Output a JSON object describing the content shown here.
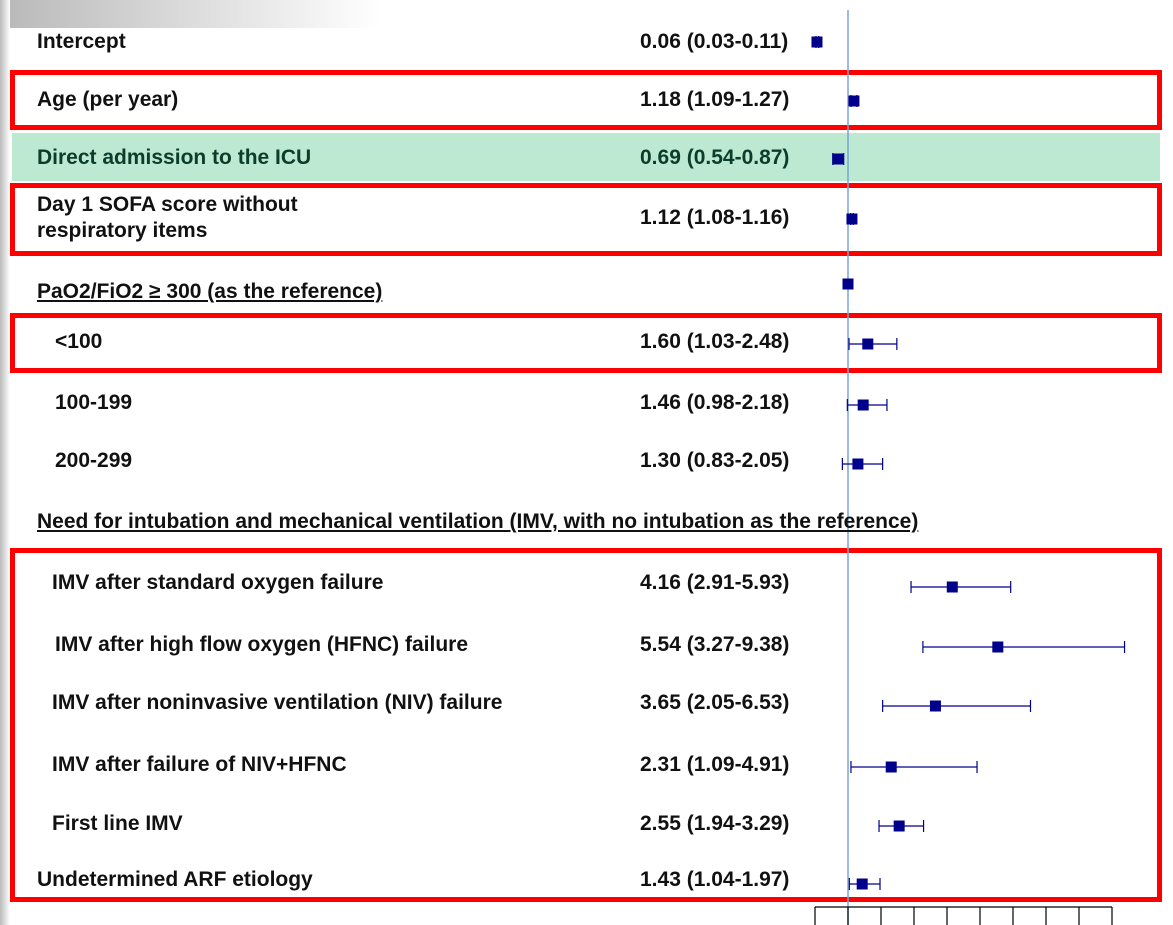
{
  "chart_data": {
    "type": "forest",
    "categories": [
      "Intercept",
      "Age (per year)",
      "Direct admission to the ICU",
      "Day 1 SOFA score without\nrespiratory items",
      "PaO2/FiO2 ≥ 300 (as the reference)",
      "<100",
      "100-199",
      "200-299",
      "Need for intubation and mechanical ventilation (IMV, with no intubation as the reference)",
      "IMV after standard oxygen failure",
      "IMV after high flow oxygen (HFNC) failure",
      "IMV after noninvasive ventilation (NIV) failure",
      "IMV after failure of NIV+HFNC",
      "First line IMV",
      "Undetermined ARF etiology"
    ],
    "values": [
      0.06,
      1.18,
      0.69,
      1.12,
      1,
      1.6,
      1.46,
      1.3,
      null,
      4.16,
      5.54,
      3.65,
      2.31,
      2.55,
      1.43
    ],
    "lower": [
      0.03,
      1.09,
      0.54,
      1.08,
      null,
      1.03,
      0.98,
      0.83,
      null,
      2.91,
      3.27,
      2.05,
      1.09,
      1.94,
      1.04
    ],
    "upper": [
      0.11,
      1.27,
      0.87,
      1.16,
      null,
      2.48,
      2.18,
      2.05,
      null,
      5.93,
      9.38,
      6.53,
      4.91,
      3.29,
      1.97
    ],
    "value_labels": [
      "0.06 (0.03-0.11)",
      "1.18 (1.09-1.27)",
      "0.69 (0.54-0.87)",
      "1.12 (1.08-1.16)",
      null,
      "1.60 (1.03-2.48)",
      "1.46 (0.98-2.18)",
      "1.30 (0.83-2.05)",
      null,
      "4.16 (2.91-5.93)",
      "5.54 (3.27-9.38)",
      "3.65 (2.05-6.53)",
      "2.31 (1.09-4.91)",
      "2.55 (1.94-3.29)",
      "1.43 (1.04-1.97)"
    ],
    "color": "#00008b",
    "xlim": [
      0,
      9.5
    ],
    "xticks": [
      0,
      1,
      2,
      3,
      4,
      5,
      6,
      7,
      8,
      9
    ],
    "reference_line": 1
  }
}
